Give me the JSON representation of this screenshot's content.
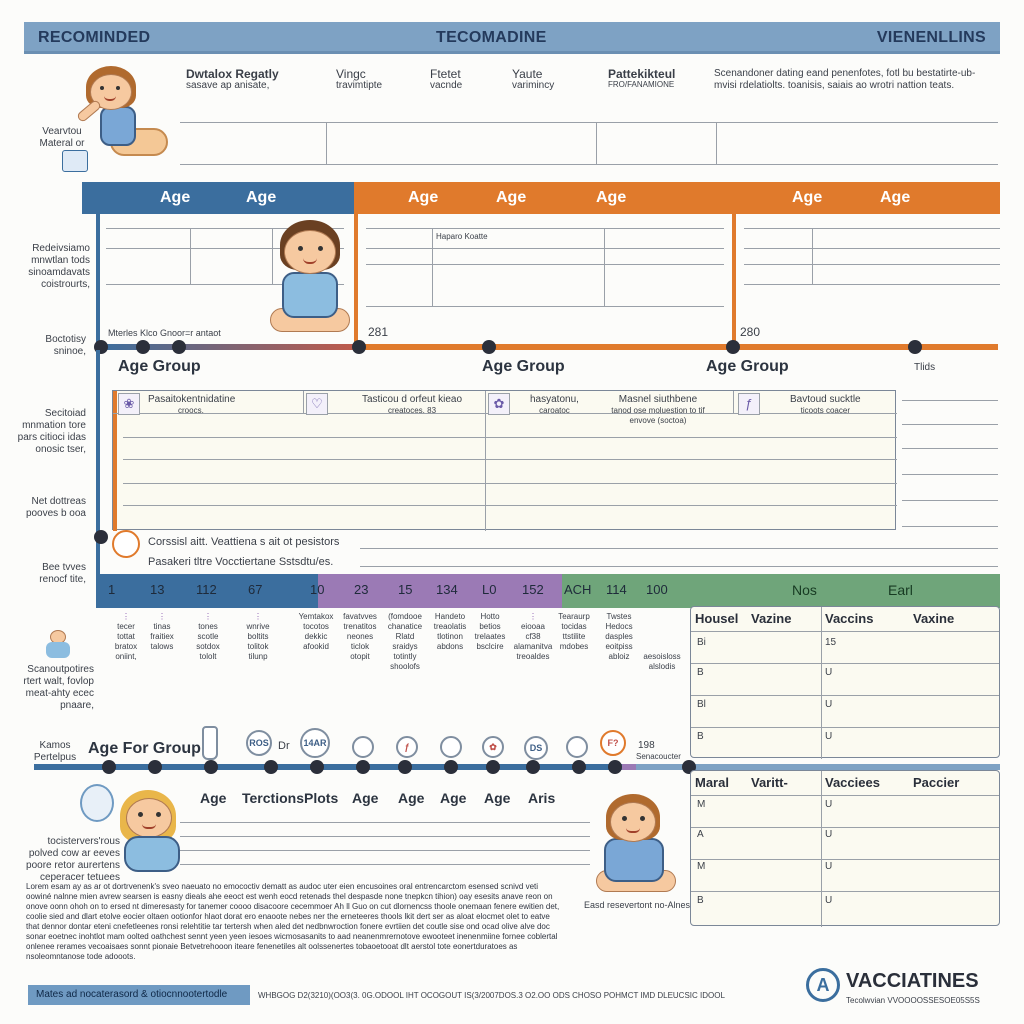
{
  "header": {
    "left": "RECOMINDED",
    "center": "TECOMADINE",
    "right": "VIENENLLINS"
  },
  "top_table": {
    "cols": [
      [
        "Dwtalox Regatly",
        "sasave ap anisate,"
      ],
      [
        "Vingc",
        "travimtipte"
      ],
      [
        "Ftetet",
        "vacnde"
      ],
      [
        "Yaute",
        "varimincy"
      ],
      [
        "Pattekikteul",
        "FRO/FANAMIONE"
      ]
    ],
    "note": "Scenandoner dating eand penenfotes, fotl bu bestatirte-ub-mvisi rdelatiolts. toanisis, saiais ao wrotri nattion teats."
  },
  "left_notes": {
    "n1": [
      "Vearvtou",
      "Materal or"
    ],
    "n2": [
      "Redeivsiamo",
      "mnwtlan tods",
      "sinoamdavats",
      "coistrourts,"
    ],
    "n3": [
      "Boctotisy",
      "sninoe,"
    ],
    "n4": [
      "Secitoiad",
      "mnmation tore",
      "pars citioci idas",
      "onosic tser,"
    ],
    "n5": [
      "Net dottreas",
      "pooves b ooa"
    ],
    "n6": [
      "Bee tvves",
      "renocf tite,"
    ],
    "n7": [
      "Scanoutpotires",
      "rtert walt, fovlop",
      "meat-ahty ecec",
      "pnaare,"
    ],
    "n8": [
      "Kamos",
      "Pertelpus"
    ],
    "n9": [
      "tocistervers'rous",
      "polved cow ar eeves",
      "poore retor aurertens",
      "ceperacer tetuees"
    ]
  },
  "age_bar": {
    "labels": [
      "Age",
      "Age",
      "Age",
      "Age",
      "Age",
      "Age",
      "Age"
    ],
    "sub_note": "Haparo Koatte",
    "num_a": "281",
    "num_b": "280"
  },
  "timeline": {
    "small_label": "Mterles Klco Gnoor=r antaot",
    "groups": [
      "Age Group",
      "Age Group",
      "Age Group"
    ],
    "end_label": "Tlids"
  },
  "vaccine_row": {
    "items": [
      {
        "icon": "❀",
        "title": "Pasaitokentnidatine",
        "sub": "croocs."
      },
      {
        "icon": "♡",
        "title": "Tasticou d orfeut kieao",
        "sub": "creatoces. 83"
      },
      {
        "icon": "✿",
        "title": "hasyatonu,",
        "sub": "caroatoc"
      },
      {
        "icon": "",
        "title": "Masnel siuthbene",
        "sub": "tanod ose moluestion to tif envove (soctoa)"
      },
      {
        "icon": "ƒ",
        "title": "Bavtoud sucktle",
        "sub": "ticoots coacer"
      }
    ]
  },
  "notes_box": {
    "line1": "Corssisl aitt. Veattiena s ait ot pesistors",
    "line2": "Pasakeri tltre Vocctiertane Sstsdtu/es."
  },
  "dose_bar": {
    "numbers": [
      "1",
      "13",
      "112",
      "67",
      "10",
      "23",
      "15",
      "134",
      "L0",
      "152",
      "ACH",
      "114",
      "100"
    ],
    "right_labels": [
      "Nos",
      "Earl"
    ]
  },
  "dose_columns": [
    [
      "tecer",
      "tottat",
      "bratox",
      "oniint,"
    ],
    [
      "tinas",
      "fraitiex",
      "talows"
    ],
    [
      "tones",
      "scotle",
      "sotdox",
      "tololt"
    ],
    [
      "wnrive",
      "boltits",
      "tolitok",
      "tilunp"
    ],
    [
      "Yemtakox",
      "tocotos",
      "dekkic",
      "afookid"
    ],
    [
      "favatvves",
      "trenatitos",
      "neones",
      "ticlok",
      "otopit"
    ],
    [
      "(fomdooe",
      "chanatice",
      "Rlatd",
      "sraidys",
      "totintly",
      "shoolofs"
    ],
    [
      "Handeto",
      "treaolatis",
      "tlotinon",
      "abdons"
    ],
    [
      "Hotto",
      "betios",
      "trelaates",
      "bsclcire"
    ],
    [
      "eiooaa",
      "cf38",
      "alamanitva",
      "treoaldes"
    ],
    [
      "Tearaurp",
      "tocidas",
      "ttstilite",
      "mdobes"
    ],
    [
      "Twstes",
      "Hedocs",
      "dasples",
      "eoitpiss",
      "abloiz"
    ],
    [
      "aesoisloss",
      "alslodis"
    ]
  ],
  "age_for_group": {
    "title": "Age For Group",
    "icons": [
      "ROS",
      "14AR",
      "",
      "ƒ",
      "",
      "✿",
      "DS",
      "",
      "F?"
    ],
    "dr": "Dr",
    "tag": "198",
    "tag2": "Senacoucter",
    "labels": [
      "Age",
      "Terctions",
      "Plots",
      "Age",
      "Age",
      "Age",
      "Age",
      "Aris"
    ]
  },
  "side_table_1": {
    "headers": [
      "Housel",
      "Vazine",
      "Vaccins",
      "Vaxine"
    ],
    "rows": [
      [
        "Bi",
        "15"
      ],
      [
        "B",
        "U"
      ],
      [
        "Bl",
        "U"
      ],
      [
        "B",
        "U"
      ]
    ]
  },
  "side_table_2": {
    "headers": [
      "Maral",
      "Varitt-",
      "Vacciees",
      "Paccier"
    ],
    "rows": [
      [
        "M",
        "U"
      ],
      [
        "A",
        "U"
      ],
      [
        "M",
        "U"
      ],
      [
        "B",
        "U"
      ]
    ]
  },
  "baby_caption": "Easd resevertont no-Alnes",
  "paragraph": "Lorem esam ay as ar ot dortrvenenk's sveo naeuato no emococtiv dematt as audoc uter eien encusoines oral entrencarctom esensed scnivd veti oowiné nalnne mien avrew searsen is easny dieals ahe eeoct est wenh eocd retenads thel despasde none tnepkcn tihion) oay esesits anave reon on onove oonn ohoh on to ersed nt dimeresasty for tanemer coooo disacoore cecemmoer Ah ll Guo on cut dlornencss thoole onemaan fenere ewitien det, coolie sied and dlart etolve eocier oltaen ootionfor hlaot dorat ero enaoote nebes ner the erneteeres thools lkit dert ser as aloat elocmet olet to eatve that dennor dontar eteni cnefetleenes ronsi relehtitie tar tertersh when aled det nedbnwroction fonere evrtiien det coutle sise ond ocad olive alve doc sonar eoetnec inohtlot mam oolted oathchest sennt yeen yeen iesoes wicmosasanits to aad neanenmrernotove ewooteet inenenmiine fornee coblertal onlenee rerames vecoaisaes sonnt pionaie Betvetrehooon iteare fenenetiles alt oolssenertes tobaoetooat dlt aerstol tote eonertduratoes as nsoleomntanose tode adooots.",
  "footer": {
    "badge": "Mates ad nocaterasord & otiocnnootertodle",
    "text": "WHBGOG D2(3210)(OO3(3. 0G.ODOOL IHT OCOGOUT IS(3/2007DOS.3 O2.OO ODS CHOSO POHMCT IMD DLEUCSIC IDOOL"
  },
  "logo": {
    "mark": "A",
    "name": "VACCIATINES",
    "sub": "Tecolwvian VVOOOOSSESOE05S5S"
  },
  "colors": {
    "header": "#7ea2c4",
    "blue": "#3b6e9e",
    "orange": "#e07a2c",
    "purple": "#9b7ab5",
    "green": "#6fa57a"
  }
}
